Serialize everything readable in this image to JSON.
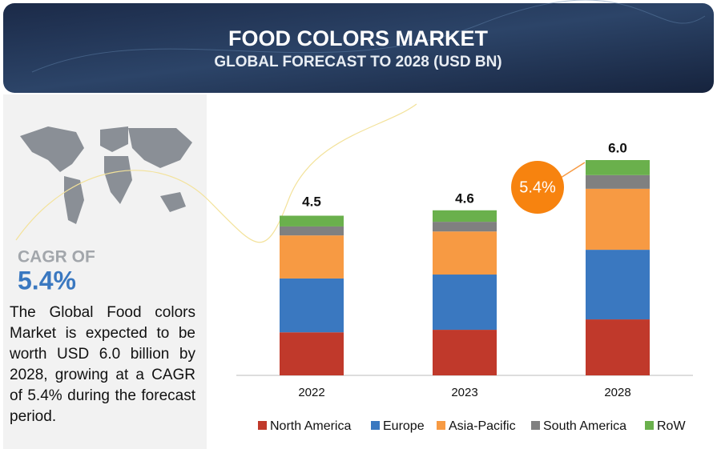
{
  "header": {
    "title": "FOOD COLORS MARKET",
    "subtitle": "GLOBAL FORECAST TO 2028 (USD BN)"
  },
  "sidebar": {
    "cagr_label": "CAGR OF",
    "cagr_value": "5.4%",
    "description": "The Global Food colors Market is expected to be worth USD 6.0 billion by 2028, growing at a CAGR of 5.4% during the forecast period."
  },
  "chart_data": {
    "type": "stacked_bar",
    "categories": [
      "2022",
      "2023",
      "2028"
    ],
    "series": [
      {
        "name": "North America",
        "color": "#c0392b",
        "values": [
          1.2,
          1.27,
          1.56
        ]
      },
      {
        "name": "Europe",
        "color": "#3a78c0",
        "values": [
          1.5,
          1.54,
          1.94
        ]
      },
      {
        "name": "Asia-Pacific",
        "color": "#f79a43",
        "values": [
          1.2,
          1.2,
          1.7
        ]
      },
      {
        "name": "South America",
        "color": "#808080",
        "values": [
          0.25,
          0.27,
          0.38
        ]
      },
      {
        "name": "RoW",
        "color": "#6ab04c",
        "values": [
          0.3,
          0.32,
          0.42
        ]
      }
    ],
    "totals": [
      4.5,
      4.6,
      6.0
    ],
    "total_labels": [
      "4.5",
      "4.6",
      "6.0"
    ],
    "annotation": "5.4%"
  }
}
